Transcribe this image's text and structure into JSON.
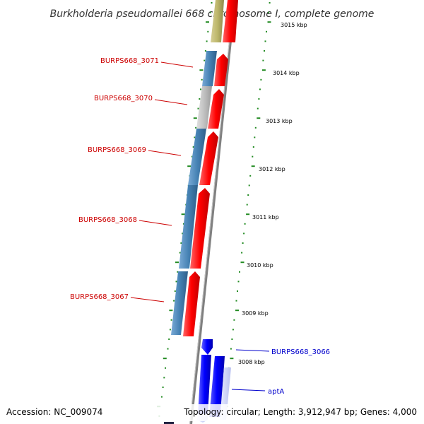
{
  "title": "Burkholderia pseudomallei 668 chromosome I, complete genome",
  "footer": {
    "accession": "Accession: NC_009074",
    "stats": "Topology: circular; Length: 3,912,947 bp; Genes: 4,000"
  },
  "ticks": [
    "3015 kbp",
    "3014 kbp",
    "3013 kbp",
    "3012 kbp",
    "3011 kbp",
    "3010 kbp",
    "3009 kbp",
    "3008 kbp"
  ],
  "gene_labels": [
    {
      "text": "BURPS668_3071",
      "color": "#cc0000"
    },
    {
      "text": "BURPS668_3070",
      "color": "#cc0000"
    },
    {
      "text": "BURPS668_3069",
      "color": "#cc0000"
    },
    {
      "text": "BURPS668_3068",
      "color": "#cc0000"
    },
    {
      "text": "BURPS668_3067",
      "color": "#cc0000"
    },
    {
      "text": "BURPS668_3066",
      "color": "#0000cc"
    },
    {
      "text": "aptA",
      "color": "#0000cc"
    }
  ],
  "colors": {
    "reverse_strand_features": "#4682b4",
    "forward_strand_features": "#ff0000",
    "minus_strand_blue": "#0000ff",
    "tick_marks": "#228b22",
    "backbone": "#808080"
  }
}
